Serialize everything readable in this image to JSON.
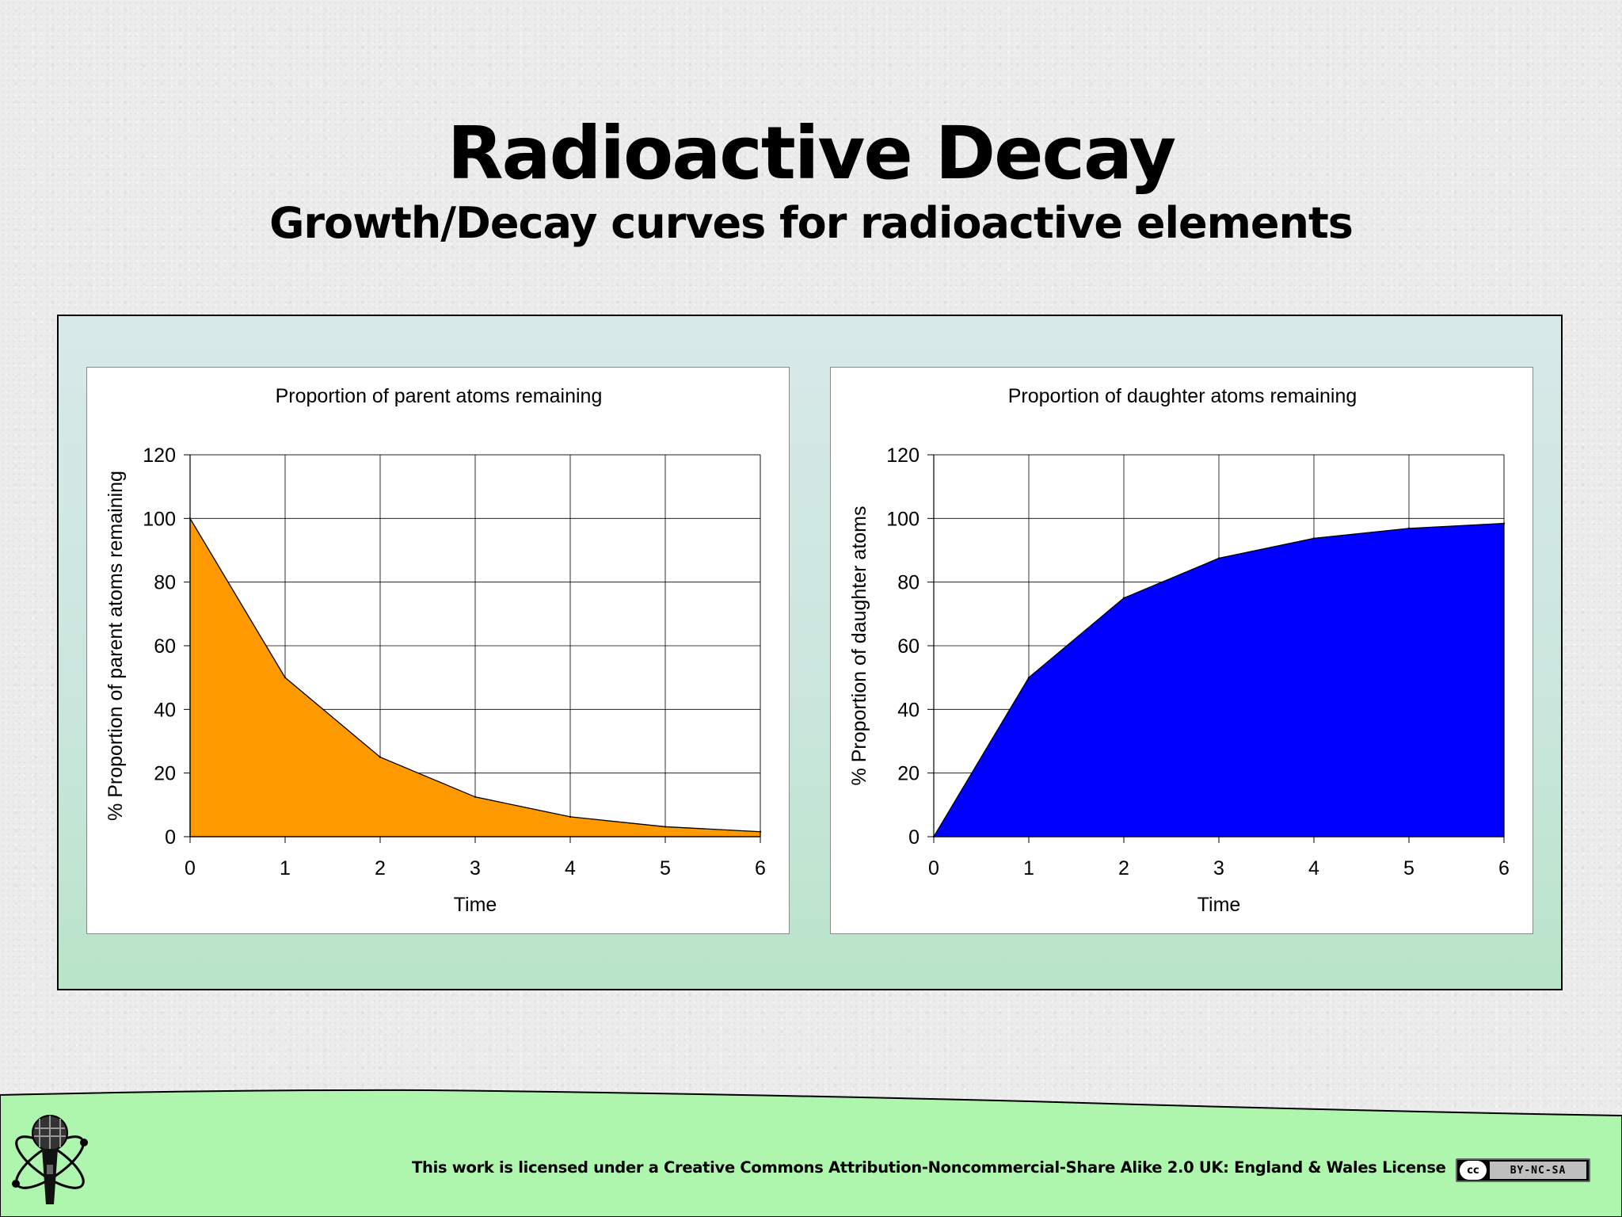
{
  "slide": {
    "title": "Radioactive Decay",
    "subtitle": "Growth/Decay curves for radioactive elements"
  },
  "footer": {
    "license_text": "This work is licensed under a Creative Commons Attribution-Noncommercial-Share Alike 2.0 UK: England & Wales License",
    "cc_icon": "cc",
    "cc_terms": "BY-NC-SA",
    "logo_icon": "atom-microphone-icon"
  },
  "colors": {
    "parent_fill": "#FF9900",
    "daughter_fill": "#0000FF",
    "panel_border": "#000000",
    "footer_band": "#AEF5AE"
  },
  "chart_data": [
    {
      "id": "parent",
      "type": "area",
      "title": "Proportion of parent atoms remaining",
      "xlabel": "Time",
      "ylabel": "% Proportion of parent atoms remaining",
      "x": [
        0,
        1,
        2,
        3,
        4,
        5,
        6
      ],
      "series": [
        {
          "name": "Parent atoms",
          "values": [
            100,
            50,
            25,
            12.5,
            6.25,
            3.125,
            1.5625
          ],
          "color": "#FF9900"
        }
      ],
      "xlim": [
        0,
        6
      ],
      "ylim": [
        0,
        120
      ],
      "yticks": [
        0,
        20,
        40,
        60,
        80,
        100,
        120
      ],
      "xticks": [
        0,
        1,
        2,
        3,
        4,
        5,
        6
      ],
      "grid": true,
      "legend": "none"
    },
    {
      "id": "daughter",
      "type": "area",
      "title": "Proportion of daughter atoms remaining",
      "xlabel": "Time",
      "ylabel": "% Proportion of daughter atoms",
      "x": [
        0,
        1,
        2,
        3,
        4,
        5,
        6
      ],
      "series": [
        {
          "name": "Daughter atoms",
          "values": [
            0,
            50,
            75,
            87.5,
            93.75,
            96.875,
            98.4375
          ],
          "color": "#0000FF"
        }
      ],
      "xlim": [
        0,
        6
      ],
      "ylim": [
        0,
        120
      ],
      "yticks": [
        0,
        20,
        40,
        60,
        80,
        100,
        120
      ],
      "xticks": [
        0,
        1,
        2,
        3,
        4,
        5,
        6
      ],
      "grid": true,
      "legend": "none"
    }
  ]
}
